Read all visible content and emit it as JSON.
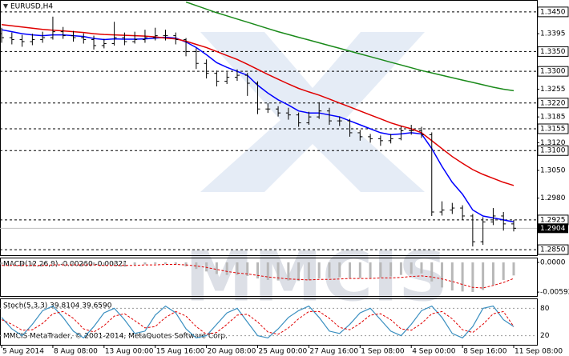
{
  "chart_data": [
    {
      "type": "ohlc",
      "title": "EURUSD,H4",
      "xlim": [
        -0.16,
        52.27
      ],
      "xticks": [
        {
          "value": 0,
          "label": "5 Aug 2014"
        },
        {
          "value": 5,
          "label": "8 Aug 08:00"
        },
        {
          "value": 10,
          "label": "13 Aug 00:00"
        },
        {
          "value": 15,
          "label": "15 Aug 16:00"
        },
        {
          "value": 20,
          "label": "20 Aug 08:00"
        },
        {
          "value": 25,
          "label": "25 Aug 00:00"
        },
        {
          "value": 30,
          "label": "27 Aug 16:00"
        },
        {
          "value": 35,
          "label": "1 Sep 08:00"
        },
        {
          "value": 40,
          "label": "4 Sep 00:00"
        },
        {
          "value": 45,
          "label": "8 Sep 16:00"
        },
        {
          "value": 50,
          "label": "11 Sep 08:00"
        }
      ],
      "ylim": [
        1.2836,
        1.3478
      ],
      "yticks": [
        {
          "value": 1.3395,
          "label": "1.3395"
        },
        {
          "value": 1.3255,
          "label": "1.3255"
        },
        {
          "value": 1.3185,
          "label": "1.3185"
        },
        {
          "value": 1.312,
          "label": "1.3120"
        },
        {
          "value": 1.305,
          "label": "1.3050"
        },
        {
          "value": 1.298,
          "label": "1.2980"
        }
      ],
      "levels": [
        {
          "value": 1.345,
          "label": "1.3450"
        },
        {
          "value": 1.335,
          "label": "1.3350"
        },
        {
          "value": 1.33,
          "label": "1.3300"
        },
        {
          "value": 1.322,
          "label": "1.3220"
        },
        {
          "value": 1.3155,
          "label": "1.3155"
        },
        {
          "value": 1.31,
          "label": "1.3100"
        },
        {
          "value": 1.2925,
          "label": "1.2925"
        },
        {
          "value": 1.285,
          "label": "1.2850"
        }
      ],
      "current_price": {
        "value": 1.2904,
        "label": "1.2904"
      },
      "bar_color": "#000000",
      "ohlc": [
        [
          1.3395,
          1.341,
          1.3372,
          1.3385
        ],
        [
          1.3385,
          1.3398,
          1.3368,
          1.338
        ],
        [
          1.338,
          1.3392,
          1.3362,
          1.3375
        ],
        [
          1.3375,
          1.3395,
          1.3366,
          1.338
        ],
        [
          1.338,
          1.34,
          1.3372,
          1.3385
        ],
        [
          1.3385,
          1.3438,
          1.338,
          1.34
        ],
        [
          1.34,
          1.3412,
          1.3382,
          1.339
        ],
        [
          1.339,
          1.3402,
          1.3375,
          1.3385
        ],
        [
          1.3385,
          1.3396,
          1.337,
          1.338
        ],
        [
          1.338,
          1.339,
          1.3355,
          1.3365
        ],
        [
          1.3365,
          1.3382,
          1.3358,
          1.337
        ],
        [
          1.337,
          1.3425,
          1.3365,
          1.3385
        ],
        [
          1.3385,
          1.3398,
          1.3366,
          1.3375
        ],
        [
          1.3375,
          1.34,
          1.337,
          1.338
        ],
        [
          1.338,
          1.3405,
          1.3372,
          1.3385
        ],
        [
          1.3385,
          1.341,
          1.3378,
          1.339
        ],
        [
          1.339,
          1.3405,
          1.3378,
          1.339
        ],
        [
          1.339,
          1.3398,
          1.3368,
          1.338
        ],
        [
          1.338,
          1.3384,
          1.3338,
          1.335
        ],
        [
          1.335,
          1.3358,
          1.3306,
          1.332
        ],
        [
          1.332,
          1.333,
          1.3282,
          1.3295
        ],
        [
          1.3295,
          1.3302,
          1.3262,
          1.3275
        ],
        [
          1.3275,
          1.3298,
          1.3268,
          1.3285
        ],
        [
          1.3285,
          1.3305,
          1.3276,
          1.329
        ],
        [
          1.329,
          1.3296,
          1.3238,
          1.327
        ],
        [
          1.327,
          1.3275,
          1.3192,
          1.3205
        ],
        [
          1.3205,
          1.322,
          1.3195,
          1.3205
        ],
        [
          1.3205,
          1.3212,
          1.3186,
          1.3195
        ],
        [
          1.3195,
          1.3208,
          1.3178,
          1.319
        ],
        [
          1.319,
          1.3196,
          1.316,
          1.317
        ],
        [
          1.317,
          1.3198,
          1.3165,
          1.3185
        ],
        [
          1.3185,
          1.3222,
          1.318,
          1.32
        ],
        [
          1.32,
          1.3208,
          1.3165,
          1.3175
        ],
        [
          1.3175,
          1.3186,
          1.3162,
          1.3175
        ],
        [
          1.3175,
          1.318,
          1.3135,
          1.3145
        ],
        [
          1.3145,
          1.3152,
          1.3125,
          1.3135
        ],
        [
          1.3135,
          1.3142,
          1.312,
          1.313
        ],
        [
          1.313,
          1.3138,
          1.3112,
          1.3125
        ],
        [
          1.3125,
          1.3142,
          1.3118,
          1.313
        ],
        [
          1.313,
          1.3162,
          1.3126,
          1.315
        ],
        [
          1.315,
          1.3165,
          1.314,
          1.315
        ],
        [
          1.315,
          1.316,
          1.3132,
          1.314
        ],
        [
          1.314,
          1.3146,
          1.2935,
          1.2945
        ],
        [
          1.2945,
          1.2972,
          1.2936,
          1.295
        ],
        [
          1.295,
          1.2968,
          1.294,
          1.2955
        ],
        [
          1.2955,
          1.2962,
          1.2925,
          1.2935
        ],
        [
          1.2935,
          1.294,
          1.2858,
          1.287
        ],
        [
          1.287,
          1.2932,
          1.2862,
          1.292
        ],
        [
          1.292,
          1.2955,
          1.2912,
          1.2935
        ],
        [
          1.2935,
          1.2945,
          1.2898,
          1.2915
        ],
        [
          1.2915,
          1.2925,
          1.2896,
          1.2904
        ]
      ],
      "lines": [
        {
          "color": "#0000ff",
          "values": [
            1.3405,
            1.34,
            1.3395,
            1.3392,
            1.339,
            1.3392,
            1.3392,
            1.339,
            1.3388,
            1.3383,
            1.338,
            1.3382,
            1.3381,
            1.3381,
            1.3382,
            1.3384,
            1.3386,
            1.3384,
            1.3374,
            1.336,
            1.3342,
            1.3322,
            1.331,
            1.33,
            1.329,
            1.3265,
            1.3245,
            1.3228,
            1.3215,
            1.32,
            1.3195,
            1.3195,
            1.319,
            1.3185,
            1.3175,
            1.3165,
            1.3155,
            1.3145,
            1.314,
            1.3142,
            1.3145,
            1.3142,
            1.3105,
            1.306,
            1.302,
            1.299,
            1.295,
            1.2935,
            1.293,
            1.2925,
            1.292
          ]
        },
        {
          "color": "#e00000",
          "values": [
            1.3418,
            1.3415,
            1.3412,
            1.3409,
            1.3406,
            1.3404,
            1.3402,
            1.34,
            1.3398,
            1.3395,
            1.3393,
            1.3392,
            1.3391,
            1.339,
            1.3389,
            1.3387,
            1.3384,
            1.3382,
            1.3376,
            1.3368,
            1.336,
            1.335,
            1.334,
            1.333,
            1.3318,
            1.3305,
            1.3292,
            1.328,
            1.3268,
            1.3257,
            1.3248,
            1.324,
            1.323,
            1.322,
            1.321,
            1.32,
            1.319,
            1.318,
            1.317,
            1.3162,
            1.3155,
            1.3145,
            1.3125,
            1.3105,
            1.3085,
            1.3068,
            1.3052,
            1.304,
            1.303,
            1.302,
            1.3012
          ]
        },
        {
          "color": "#1a8a1a",
          "values": [
            null,
            null,
            null,
            null,
            null,
            null,
            null,
            null,
            null,
            null,
            null,
            null,
            null,
            null,
            null,
            null,
            null,
            null,
            1.3475,
            1.3466,
            1.3457,
            1.3448,
            1.344,
            1.3432,
            1.3424,
            1.3416,
            1.3408,
            1.34,
            1.3393,
            1.3386,
            1.3379,
            1.3372,
            1.3365,
            1.3358,
            1.3351,
            1.3344,
            1.3337,
            1.333,
            1.3323,
            1.3316,
            1.3309,
            1.3302,
            1.3296,
            1.329,
            1.3284,
            1.3278,
            1.3272,
            1.3266,
            1.326,
            1.3255,
            1.3251
          ]
        }
      ]
    },
    {
      "type": "macd",
      "title": "MACD(12,26,9) -0.00260 -0.00321",
      "ylim": [
        -0.0067,
        0.0008
      ],
      "yticks": [
        {
          "value": 0,
          "label": "0.0000"
        },
        {
          "value": -0.00592,
          "label": "-0.00592"
        }
      ],
      "hist_color": "#b8b8b8",
      "signal_color": "#e00000",
      "histogram": [
        -0.0004,
        -0.0005,
        -0.0006,
        -0.0006,
        -0.0005,
        -0.0004,
        -0.0004,
        -0.0005,
        -0.0005,
        -0.0006,
        -0.0007,
        -0.0006,
        -0.0006,
        -0.0005,
        -0.0004,
        -0.0003,
        -0.0003,
        -0.0004,
        -0.0008,
        -0.0013,
        -0.0018,
        -0.0023,
        -0.0025,
        -0.0025,
        -0.0027,
        -0.0032,
        -0.0035,
        -0.0036,
        -0.0036,
        -0.0037,
        -0.0035,
        -0.0032,
        -0.0031,
        -0.003,
        -0.0031,
        -0.0031,
        -0.0031,
        -0.003,
        -0.0028,
        -0.0025,
        -0.0023,
        -0.0022,
        -0.0038,
        -0.005,
        -0.0056,
        -0.0058,
        -0.0059,
        -0.0055,
        -0.0045,
        -0.0035,
        -0.0026
      ],
      "signal": [
        -0.0006,
        -0.0006,
        -0.0006,
        -0.0006,
        -0.0006,
        -0.0005,
        -0.0005,
        -0.0005,
        -0.0005,
        -0.0005,
        -0.0006,
        -0.0006,
        -0.0006,
        -0.0006,
        -0.0005,
        -0.0005,
        -0.0004,
        -0.0004,
        -0.0005,
        -0.0007,
        -0.001,
        -0.0014,
        -0.0018,
        -0.0021,
        -0.0023,
        -0.0026,
        -0.0029,
        -0.0031,
        -0.0033,
        -0.0034,
        -0.0035,
        -0.0034,
        -0.0034,
        -0.0033,
        -0.0032,
        -0.0032,
        -0.0032,
        -0.0031,
        -0.0031,
        -0.003,
        -0.0028,
        -0.0027,
        -0.0029,
        -0.0033,
        -0.0038,
        -0.0044,
        -0.005,
        -0.0051,
        -0.0046,
        -0.004,
        -0.0032
      ]
    },
    {
      "type": "stoch",
      "title": "Stoch(5,3,3) 39.8104 39.6590",
      "ylim": [
        0,
        100
      ],
      "yticks": [
        80,
        20
      ],
      "main_color": "#3a8fc0",
      "signal_color": "#e00000",
      "main": [
        60,
        35,
        20,
        45,
        75,
        85,
        60,
        30,
        15,
        40,
        70,
        80,
        55,
        25,
        30,
        65,
        85,
        70,
        35,
        15,
        20,
        45,
        70,
        80,
        50,
        20,
        15,
        35,
        60,
        75,
        85,
        60,
        30,
        25,
        45,
        70,
        80,
        55,
        30,
        20,
        45,
        75,
        85,
        60,
        25,
        15,
        40,
        80,
        85,
        55,
        40
      ],
      "signal": [
        55,
        45,
        32,
        33,
        47,
        68,
        73,
        58,
        35,
        28,
        42,
        63,
        68,
        53,
        37,
        40,
        60,
        73,
        63,
        40,
        23,
        27,
        45,
        65,
        67,
        50,
        28,
        23,
        37,
        57,
        73,
        73,
        58,
        38,
        33,
        47,
        65,
        68,
        55,
        35,
        32,
        47,
        68,
        73,
        57,
        33,
        27,
        45,
        68,
        73,
        40
      ]
    }
  ],
  "watermark": "MMCIS",
  "copyright": "MMCIS MetaTrader, © 2001-2014, MetaQuotes Software Corp."
}
